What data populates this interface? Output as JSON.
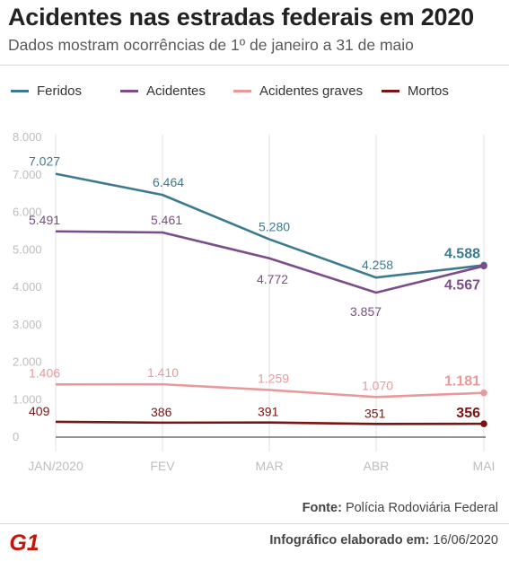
{
  "header": {
    "title": "Acidentes nas estradas federais em 2020",
    "subtitle": "Dados mostram ocorrências de 1º de janeiro a 31 de maio"
  },
  "footer": {
    "source_label": "Fonte:",
    "source_value": "Polícia Rodoviária Federal",
    "credit_label": "Infográfico elaborado em:",
    "credit_value": "16/06/2020",
    "logo_text": "G1"
  },
  "chart_data": {
    "type": "line",
    "categories": [
      "JAN/2020",
      "FEV",
      "MAR",
      "ABR",
      "MAI"
    ],
    "y_ticks": [
      "8.000",
      "7.000",
      "6.000",
      "5.000",
      "4.000",
      "3.000",
      "2.000",
      "1.000",
      "0"
    ],
    "ylim": [
      0,
      8000
    ],
    "grid": false,
    "legend_position": "top",
    "series": [
      {
        "name": "Feridos",
        "color": "#3d7a91",
        "values": [
          7027,
          6464,
          5280,
          4258,
          4588
        ],
        "labels": [
          "7.027",
          "6.464",
          "5.280",
          "4.258",
          "4.588"
        ]
      },
      {
        "name": "Acidentes",
        "color": "#7b4d8a",
        "values": [
          5491,
          5461,
          4772,
          3857,
          4567
        ],
        "labels": [
          "5.491",
          "5.461",
          "4.772",
          "3.857",
          "4.567"
        ]
      },
      {
        "name": "Acidentes graves",
        "color": "#e89a9a",
        "values": [
          1406,
          1410,
          1259,
          1070,
          1181
        ],
        "labels": [
          "1.406",
          "1.410",
          "1.259",
          "1.070",
          "1.181"
        ]
      },
      {
        "name": "Mortos",
        "color": "#7a1414",
        "values": [
          409,
          386,
          391,
          351,
          356
        ],
        "labels": [
          "409",
          "386",
          "391",
          "351",
          "356"
        ]
      }
    ]
  }
}
